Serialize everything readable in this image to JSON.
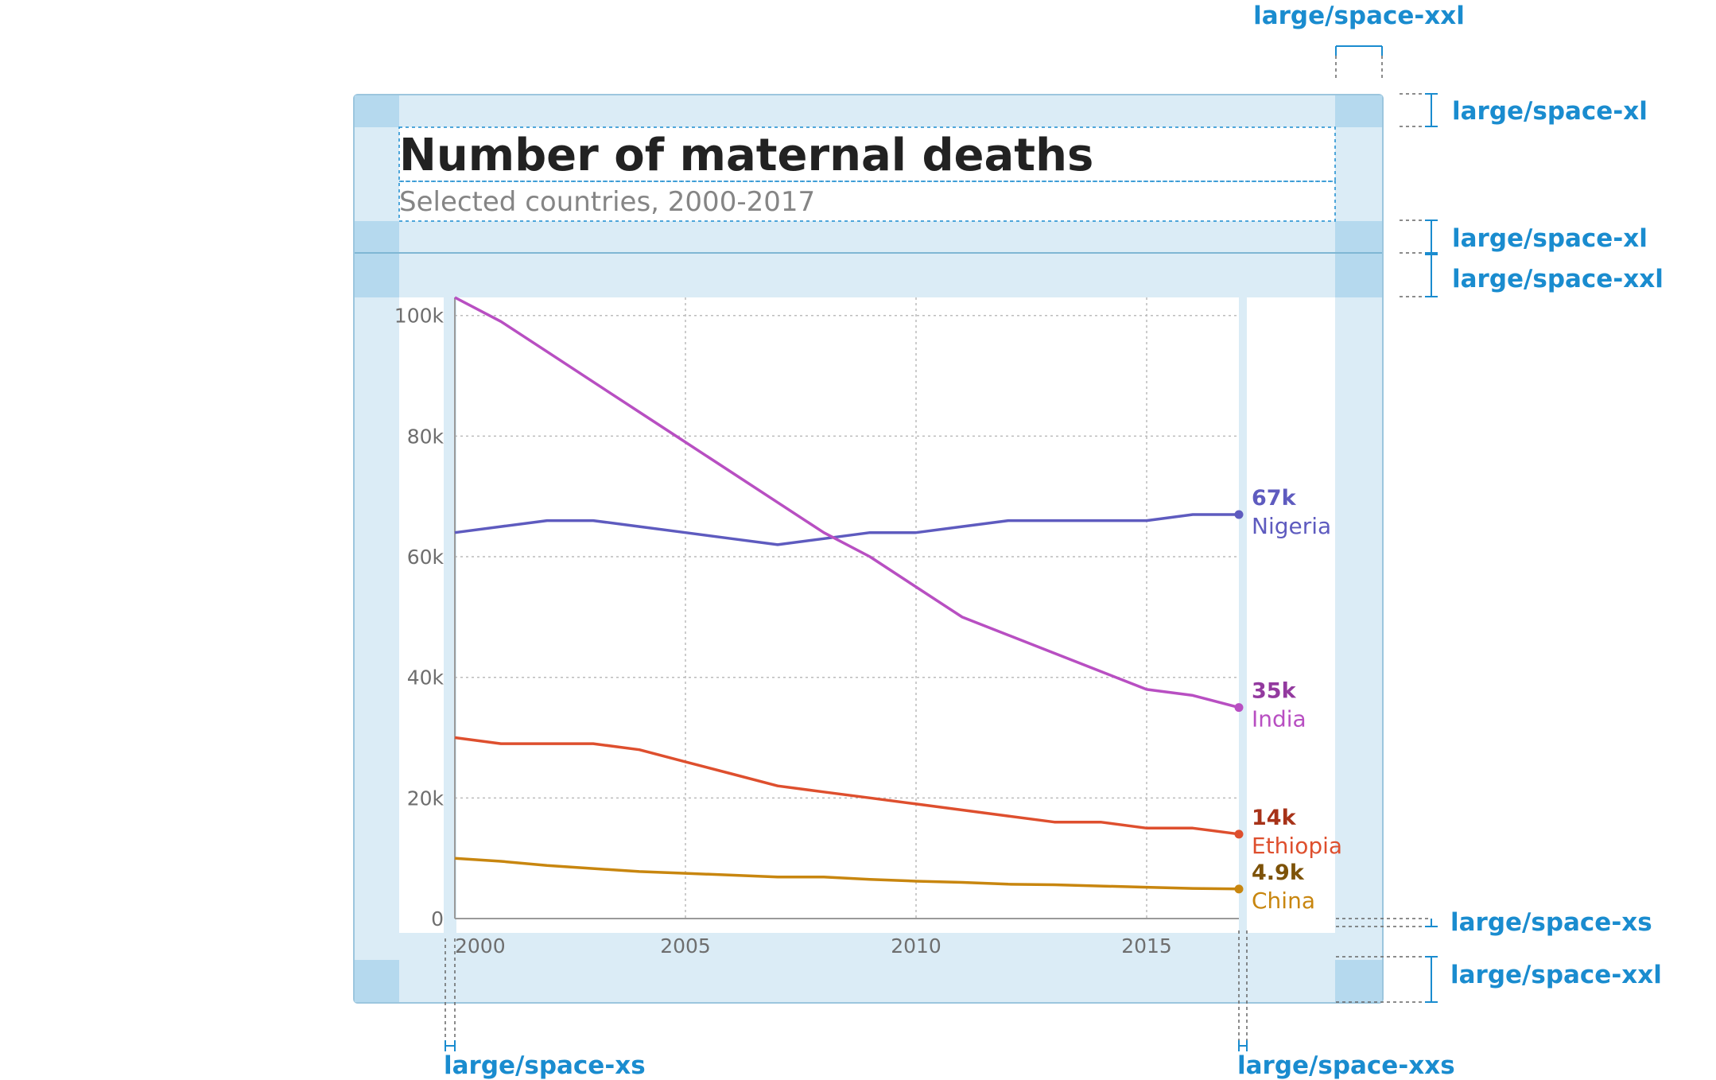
{
  "colors": {
    "annotation": "#1a8ccf",
    "zone": "#dbecf6",
    "zone_dark": "#b5d9ee",
    "frame": "#9cc6de",
    "title": "#222222",
    "subtitle": "#858585",
    "axis_text": "#6e6e6e",
    "grid": "#bcbcbc",
    "axis": "#9a9a9a"
  },
  "spacing_annotations": {
    "top_margin": "large/space-xxl",
    "header_top": "large/space-xl",
    "header_bottom": "large/space-xl",
    "chart_top": "large/space-xxl",
    "chart_bottom": "large/space-xs",
    "bottom_margin": "large/space-xxl",
    "left_inset": "large/space-xs",
    "right_inset": "large/space-xxs"
  },
  "chart_data": {
    "type": "line",
    "title": "Number of maternal deaths",
    "subtitle": "Selected countries, 2000-2017",
    "xlabel": "",
    "ylabel": "",
    "xlim": [
      2000,
      2017
    ],
    "ylim": [
      0,
      103000
    ],
    "x_ticks": [
      2000,
      2005,
      2010,
      2015
    ],
    "x_tick_labels": [
      "2000",
      "2005",
      "2010",
      "2015"
    ],
    "y_ticks": [
      0,
      20000,
      40000,
      60000,
      80000,
      100000
    ],
    "y_tick_labels": [
      "0",
      "20k",
      "40k",
      "60k",
      "80k",
      "100k"
    ],
    "grid": true,
    "x": [
      2000,
      2001,
      2002,
      2003,
      2004,
      2005,
      2006,
      2007,
      2008,
      2009,
      2010,
      2011,
      2012,
      2013,
      2014,
      2015,
      2016,
      2017
    ],
    "series": [
      {
        "name": "Nigeria",
        "end_label": "67k",
        "color": "#5e5bbf",
        "label_color": "#5e5bbf",
        "values": [
          64000,
          65000,
          66000,
          66000,
          65000,
          64000,
          63000,
          62000,
          63000,
          64000,
          64000,
          65000,
          66000,
          66000,
          66000,
          66000,
          67000,
          67000
        ]
      },
      {
        "name": "India",
        "end_label": "35k",
        "color": "#b84fc2",
        "label_color": "#933a9f",
        "values": [
          103000,
          99000,
          94000,
          89000,
          84000,
          79000,
          74000,
          69000,
          64000,
          60000,
          55000,
          50000,
          47000,
          44000,
          41000,
          38000,
          37000,
          35000
        ]
      },
      {
        "name": "Ethiopia",
        "end_label": "14k",
        "color": "#de4f2e",
        "label_color": "#a73218",
        "values": [
          30000,
          29000,
          29000,
          29000,
          28000,
          26000,
          24000,
          22000,
          21000,
          20000,
          19000,
          18000,
          17000,
          16000,
          16000,
          15000,
          15000,
          14000
        ]
      },
      {
        "name": "China",
        "end_label": "4.9k",
        "color": "#c8860f",
        "label_color": "#7d5208",
        "values": [
          10000,
          9500,
          8800,
          8300,
          7800,
          7500,
          7200,
          6900,
          6900,
          6500,
          6200,
          6000,
          5700,
          5600,
          5400,
          5200,
          5000,
          4900
        ]
      }
    ]
  }
}
